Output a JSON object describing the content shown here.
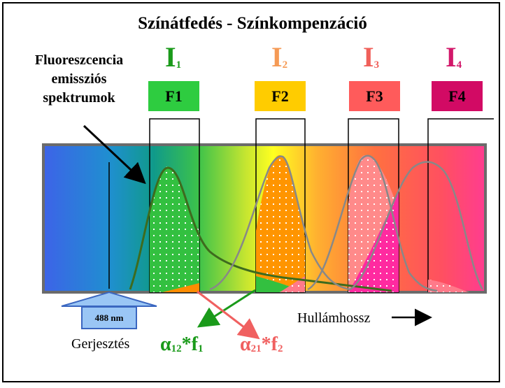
{
  "title": "Színátfedés  -  Színkompenzáció",
  "fluor_label": [
    "Fluoreszcencia",
    "emissziós",
    "spektrumok"
  ],
  "channels": [
    {
      "letter": "I",
      "sub": "1",
      "filter": "F1",
      "color": "#1a9a1a",
      "box_color": "#2ecc40"
    },
    {
      "letter": "I",
      "sub": "2",
      "filter": "F2",
      "color": "#f59a55",
      "box_color": "#ffcc00"
    },
    {
      "letter": "I",
      "sub": "3",
      "filter": "F3",
      "color": "#f0605a",
      "box_color": "#ff5b5b"
    },
    {
      "letter": "I",
      "sub": "4",
      "filter": "F4",
      "color": "#d2186a",
      "box_color": "#d20a64"
    }
  ],
  "excitation": {
    "label": "488 nm",
    "caption": "Gerjesztés"
  },
  "axis_label": "Hullámhossz",
  "compensation": [
    {
      "alpha": "α",
      "sub": "12",
      "star": "*f",
      "fsub": "1",
      "color": "#1a9a1a"
    },
    {
      "alpha": "α",
      "sub": "21",
      "star": "*f",
      "fsub": "2",
      "color": "#f06060"
    }
  ]
}
